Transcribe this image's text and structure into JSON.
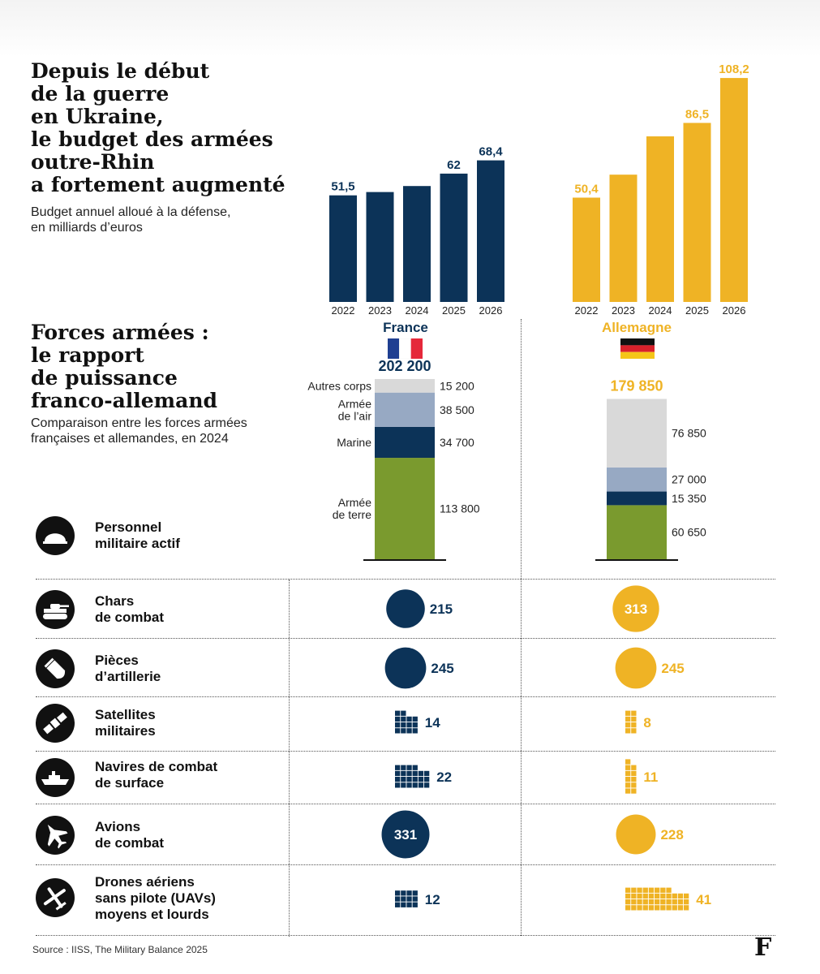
{
  "title1": {
    "lines": [
      "Depuis le début",
      "de la guerre",
      "en Ukraine,",
      "le budget des armées",
      "outre-Rhin",
      "a fortement augmenté"
    ],
    "subtitle_lines": [
      "Budget annuel alloué à la défense,",
      "en milliards d’euros"
    ]
  },
  "title2": {
    "lines": [
      "Forces armées :",
      "le rapport",
      "de puissance",
      "franco-allemand"
    ],
    "subtitle_lines": [
      "Comparaison entre les forces armées",
      "françaises et allemandes, en 2024"
    ]
  },
  "colors": {
    "france": "#0c3358",
    "germany": "#efb325",
    "air": "#97a9c3",
    "other": "#d9d9d9",
    "land": "#7a9a2e"
  },
  "chart_data": [
    {
      "type": "bar",
      "series_name": "France",
      "categories": [
        "2022",
        "2023",
        "2024",
        "2025",
        "2026"
      ],
      "values": [
        51.5,
        53.1,
        56.0,
        62,
        68.4
      ],
      "labels": [
        "51,5",
        "",
        "",
        "62",
        "68,4"
      ],
      "ylim": [
        0,
        110
      ]
    },
    {
      "type": "bar",
      "series_name": "Allemagne",
      "categories": [
        "2022",
        "2023",
        "2024",
        "2025",
        "2026"
      ],
      "values": [
        50.4,
        61.5,
        80.0,
        86.5,
        108.2
      ],
      "labels": [
        "50,4",
        "",
        "",
        "86,5",
        "108,2"
      ],
      "ylim": [
        0,
        110
      ]
    },
    {
      "type": "stacked_bar",
      "series_name": "France",
      "total_label": "202 200",
      "segments": [
        {
          "name": "Armée de terre",
          "label_lines": [
            "Armée",
            "de terre"
          ],
          "value": 113800,
          "value_label": "113 800",
          "color": "#7a9a2e"
        },
        {
          "name": "Marine",
          "label_lines": [
            "Marine"
          ],
          "value": 34700,
          "value_label": "34 700",
          "color": "#0c3358"
        },
        {
          "name": "Armée de l’air",
          "label_lines": [
            "Armée",
            "de l’air"
          ],
          "value": 38500,
          "value_label": "38 500",
          "color": "#97a9c3"
        },
        {
          "name": "Autres corps",
          "label_lines": [
            "Autres corps"
          ],
          "value": 15200,
          "value_label": "15 200",
          "color": "#d9d9d9"
        }
      ]
    },
    {
      "type": "stacked_bar",
      "series_name": "Allemagne",
      "total_label": "179 850",
      "segments": [
        {
          "name": "Armée de terre",
          "value": 60650,
          "value_label": "60 650",
          "color": "#7a9a2e"
        },
        {
          "name": "Marine",
          "value": 15350,
          "value_label": "15 350",
          "color": "#0c3358"
        },
        {
          "name": "Armée de l’air",
          "value": 27000,
          "value_label": "27 000",
          "color": "#97a9c3"
        },
        {
          "name": "Autres corps",
          "value": 76850,
          "value_label": "76 850",
          "color": "#d9d9d9"
        }
      ]
    },
    {
      "type": "table",
      "columns": [
        "France",
        "Allemagne"
      ],
      "rows": [
        {
          "label_lines": [
            "Chars",
            "de combat"
          ],
          "icon": "tank-icon",
          "france": 215,
          "germany": 313,
          "display": "circle"
        },
        {
          "label_lines": [
            "Pièces",
            "d’artillerie"
          ],
          "icon": "artillery-shell-icon",
          "france": 245,
          "germany": 245,
          "display": "circle"
        },
        {
          "label_lines": [
            "Satellites",
            "militaires"
          ],
          "icon": "satellite-icon",
          "france": 14,
          "germany": 8,
          "display": "squares"
        },
        {
          "label_lines": [
            "Navires de combat",
            "de surface"
          ],
          "icon": "warship-icon",
          "france": 22,
          "germany": 11,
          "display": "squares"
        },
        {
          "label_lines": [
            "Avions",
            "de combat"
          ],
          "icon": "fighter-jet-icon",
          "france": 331,
          "germany": 228,
          "display": "circle"
        },
        {
          "label_lines": [
            "Drones aériens",
            "sans pilote (UAVs)",
            "moyens et lourds"
          ],
          "icon": "drone-icon",
          "france": 12,
          "germany": 41,
          "display": "squares"
        }
      ]
    }
  ],
  "countries": {
    "france": "France",
    "germany": "Allemagne"
  },
  "personnel_label_lines": [
    "Personnel",
    "militaire actif"
  ],
  "personnel_icon": "helmet-icon",
  "source": "Source : IISS, The Military Balance 2025",
  "logo": "F"
}
